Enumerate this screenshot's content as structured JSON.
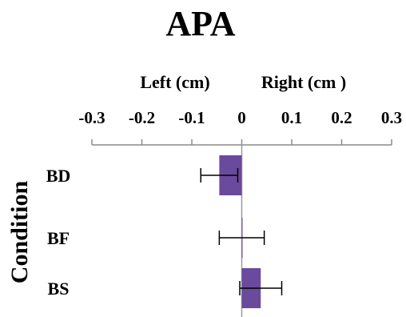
{
  "chart_data": {
    "type": "bar",
    "orientation": "horizontal",
    "title": "APA",
    "xlabel_left": "Left  (cm)",
    "xlabel_right": "Right (cm )",
    "ylabel": "Condition",
    "xlim": [
      -0.3,
      0.3
    ],
    "xticks": [
      -0.3,
      -0.2,
      -0.1,
      0,
      0.1,
      0.2,
      0.3
    ],
    "xtick_labels": [
      "-0.3",
      "-0.2",
      "-0.1",
      "0",
      "0.1",
      "0.2",
      "0.3"
    ],
    "x_axis_position": "top",
    "categories": [
      "BD",
      "BF",
      "BS"
    ],
    "values": [
      -0.045,
      0.0,
      0.038
    ],
    "errors": [
      0.037,
      0.045,
      0.042
    ],
    "bar_color": "#6a4a9c",
    "grid": false
  }
}
